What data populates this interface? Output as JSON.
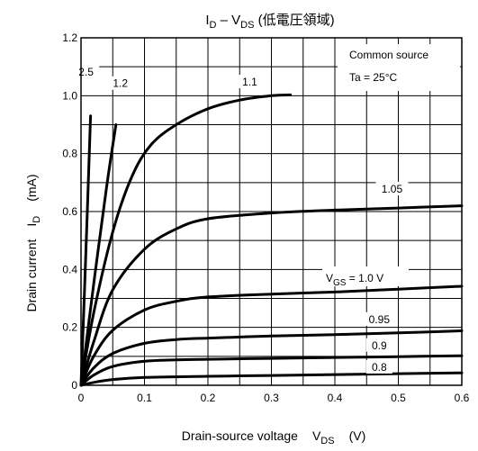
{
  "chart_data": {
    "type": "line",
    "title": {
      "main": "I",
      "main_sub": "D",
      "dash": " – V",
      "dash_sub": "DS",
      "suffix": " (低電圧領域)"
    },
    "xlabel": {
      "text": "Drain-source voltage",
      "sym": "V",
      "sym_sub": "DS",
      "unit": "(V)"
    },
    "ylabel": {
      "text": "Drain current",
      "sym": "I",
      "sym_sub": "D",
      "unit": "(mA)"
    },
    "xlim": [
      0,
      0.6
    ],
    "ylim": [
      0,
      1.2
    ],
    "x_ticks": [
      "0",
      "0.1",
      "0.2",
      "0.3",
      "0.4",
      "0.5",
      "0.6"
    ],
    "y_ticks": [
      "0",
      "0.2",
      "0.4",
      "0.6",
      "0.8",
      "1.0",
      "1.2"
    ],
    "grid": true,
    "annotations": {
      "line1": "Common source",
      "line2": "Ta = 25°C",
      "vgs_sym": "V",
      "vgs_sub": "GS",
      "vgs_rest": " = 1.0 V"
    },
    "series": [
      {
        "name": "2.5",
        "x": [
          0,
          0.01,
          0.015
        ],
        "y": [
          0,
          0.6,
          0.93
        ]
      },
      {
        "name": "1.2",
        "x": [
          0,
          0.02,
          0.04,
          0.055
        ],
        "y": [
          0,
          0.35,
          0.68,
          0.9
        ]
      },
      {
        "name": "1.1",
        "x": [
          0,
          0.02,
          0.05,
          0.08,
          0.11,
          0.15,
          0.2,
          0.25,
          0.3,
          0.33
        ],
        "y": [
          0,
          0.25,
          0.53,
          0.72,
          0.83,
          0.9,
          0.955,
          0.985,
          1.0,
          1.003
        ]
      },
      {
        "name": "1.05",
        "x": [
          0,
          0.02,
          0.05,
          0.1,
          0.15,
          0.2,
          0.3,
          0.4,
          0.5,
          0.6
        ],
        "y": [
          0,
          0.15,
          0.33,
          0.47,
          0.54,
          0.575,
          0.595,
          0.605,
          0.612,
          0.62
        ]
      },
      {
        "name": "1.0",
        "x": [
          0,
          0.02,
          0.05,
          0.1,
          0.15,
          0.2,
          0.3,
          0.4,
          0.5,
          0.6
        ],
        "y": [
          0,
          0.1,
          0.19,
          0.26,
          0.29,
          0.305,
          0.315,
          0.322,
          0.332,
          0.342
        ]
      },
      {
        "name": "0.95",
        "x": [
          0,
          0.02,
          0.05,
          0.1,
          0.15,
          0.2,
          0.3,
          0.4,
          0.5,
          0.6
        ],
        "y": [
          0,
          0.06,
          0.11,
          0.145,
          0.158,
          0.163,
          0.17,
          0.175,
          0.181,
          0.188
        ]
      },
      {
        "name": "0.9",
        "x": [
          0,
          0.02,
          0.05,
          0.1,
          0.15,
          0.2,
          0.3,
          0.4,
          0.5,
          0.6
        ],
        "y": [
          0,
          0.035,
          0.065,
          0.083,
          0.088,
          0.09,
          0.093,
          0.096,
          0.099,
          0.102
        ]
      },
      {
        "name": "0.8",
        "x": [
          0,
          0.02,
          0.05,
          0.1,
          0.2,
          0.3,
          0.4,
          0.5,
          0.6
        ],
        "y": [
          0,
          0.01,
          0.02,
          0.027,
          0.031,
          0.034,
          0.037,
          0.04,
          0.043
        ]
      }
    ]
  }
}
